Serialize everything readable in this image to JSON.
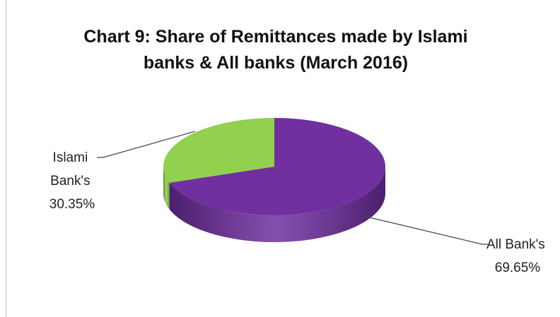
{
  "chart_data": {
    "type": "pie",
    "title_lines": [
      "Chart 9: Share of Remittances made by Islami",
      "banks &  All banks (March 2016)"
    ],
    "slices": [
      {
        "name": "All Bank's",
        "label_text": "69.65%",
        "value": 69.65,
        "color": "#7030a0",
        "side_color": "#4b1f6e"
      },
      {
        "name": "Islami Bank's",
        "label_lines": [
          "Islami",
          "Bank's"
        ],
        "label_text": "30.35%",
        "value": 30.35,
        "color": "#92d050",
        "side_color": "#5e8a30"
      }
    ],
    "style": "3d-pie",
    "legend": "none"
  }
}
